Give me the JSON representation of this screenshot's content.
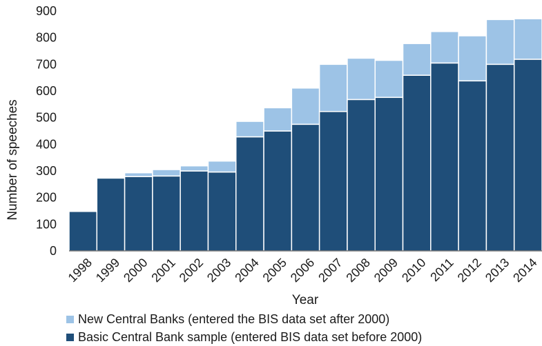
{
  "chart_data": {
    "type": "bar",
    "stacked": true,
    "xlabel": "Year",
    "ylabel": "Number of speeches",
    "ylim": [
      0,
      900
    ],
    "yticks": [
      0,
      100,
      200,
      300,
      400,
      500,
      600,
      700,
      800,
      900
    ],
    "grid": false,
    "legend_position": "bottom",
    "categories": [
      "1998",
      "1999",
      "2000",
      "2001",
      "2002",
      "2003",
      "2004",
      "2005",
      "2006",
      "2007",
      "2008",
      "2009",
      "2010",
      "2011",
      "2012",
      "2013",
      "2014"
    ],
    "series": [
      {
        "name": "Basic Central Bank sample (entered BIS data set before 2000)",
        "color": "#1f4e79",
        "values": [
          148,
          273,
          279,
          281,
          300,
          296,
          428,
          450,
          475,
          523,
          568,
          576,
          659,
          705,
          638,
          700,
          719
        ]
      },
      {
        "name": "New Central Banks (entered the BIS data set after 2000)",
        "color": "#9dc3e6",
        "values": [
          0,
          0,
          14,
          24,
          19,
          41,
          58,
          87,
          136,
          177,
          155,
          139,
          119,
          118,
          169,
          168,
          152
        ]
      }
    ]
  }
}
